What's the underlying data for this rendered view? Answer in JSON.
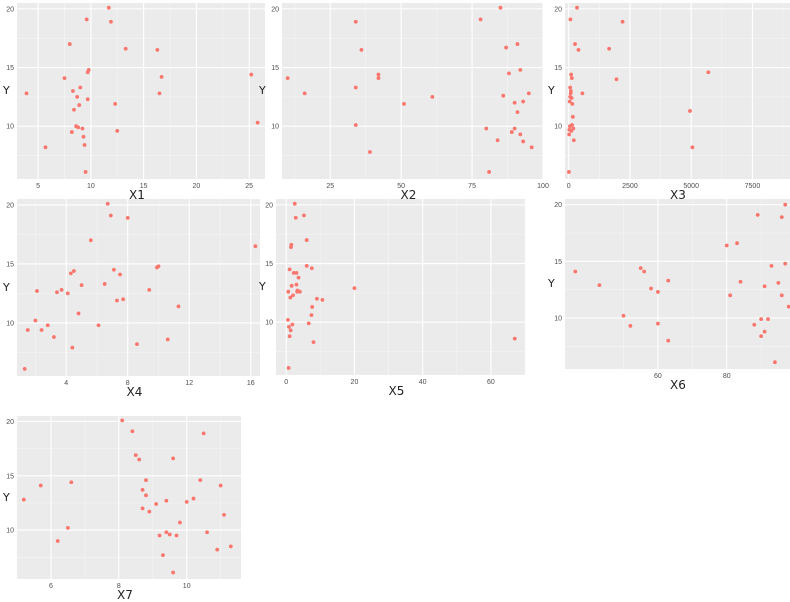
{
  "chart_data": [
    {
      "type": "scatter",
      "xlabel": "X1",
      "ylabel": "Y",
      "xlim": [
        3,
        26.5
      ],
      "ylim": [
        5.5,
        20.5
      ],
      "xticks": [
        5,
        10,
        15,
        20,
        25
      ],
      "yticks": [
        10,
        15,
        20
      ],
      "x": [
        3.9,
        5.7,
        7.5,
        8.0,
        8.2,
        8.3,
        8.4,
        8.6,
        8.7,
        8.8,
        8.9,
        9.0,
        9.2,
        9.3,
        9.4,
        9.5,
        9.6,
        9.7,
        9.7,
        9.8,
        11.7,
        11.9,
        12.3,
        12.5,
        13.3,
        16.3,
        16.5,
        16.7,
        25.2,
        25.8
      ],
      "y": [
        12.8,
        8.2,
        14.1,
        17.0,
        9.5,
        13.0,
        11.4,
        10.0,
        12.5,
        9.9,
        11.8,
        13.3,
        9.8,
        9.1,
        8.4,
        6.1,
        19.1,
        12.3,
        14.6,
        14.8,
        20.1,
        18.9,
        11.9,
        9.6,
        16.6,
        16.5,
        12.8,
        14.2,
        14.4,
        10.3
      ]
    },
    {
      "type": "scatter",
      "xlabel": "X2",
      "ylabel": "Y",
      "xlim": [
        8,
        100
      ],
      "ylim": [
        5.5,
        20.5
      ],
      "xticks": [
        25,
        50,
        75,
        100
      ],
      "yticks": [
        10,
        15,
        20
      ],
      "x": [
        10,
        16,
        34,
        34,
        34,
        36,
        39,
        42,
        42,
        51,
        61,
        78,
        80,
        81,
        84,
        85,
        86,
        87,
        88,
        89,
        90,
        90,
        91,
        91,
        92,
        92,
        93,
        93,
        95,
        96
      ],
      "y": [
        14.1,
        12.8,
        18.9,
        13.3,
        10.1,
        16.5,
        7.8,
        14.1,
        14.4,
        11.9,
        12.5,
        19.1,
        9.8,
        6.1,
        8.8,
        20.1,
        12.6,
        16.7,
        14.5,
        9.5,
        9.8,
        12.0,
        11.2,
        17.0,
        9.3,
        14.8,
        12.1,
        8.7,
        12.8,
        8.2
      ]
    },
    {
      "type": "scatter",
      "xlabel": "X3",
      "ylabel": "Y",
      "xlim": [
        -150,
        9400
      ],
      "ylim": [
        5.5,
        20.5
      ],
      "xticks": [
        0,
        2500,
        5000,
        7500
      ],
      "yticks": [
        10,
        15,
        20
      ],
      "x": [
        10,
        20,
        30,
        40,
        50,
        60,
        70,
        80,
        90,
        100,
        110,
        120,
        130,
        140,
        150,
        170,
        190,
        210,
        260,
        340,
        400,
        560,
        1650,
        1950,
        2200,
        4950,
        5050,
        5700,
        9150,
        60
      ],
      "y": [
        6.1,
        9.3,
        9.7,
        12.1,
        10.0,
        13.3,
        19.1,
        12.8,
        13.0,
        14.4,
        9.6,
        12.4,
        14.1,
        10.1,
        11.9,
        10.8,
        9.8,
        8.8,
        17.0,
        20.1,
        16.5,
        12.8,
        16.6,
        14.0,
        18.9,
        11.3,
        8.2,
        14.6,
        8.4,
        12.5
      ]
    },
    {
      "type": "scatter",
      "xlabel": "X4",
      "ylabel": "Y",
      "xlim": [
        0.8,
        16.6
      ],
      "ylim": [
        5.5,
        20.5
      ],
      "xticks": [
        4,
        8,
        12,
        16
      ],
      "yticks": [
        10,
        15,
        20
      ],
      "x": [
        1.3,
        1.5,
        2.0,
        2.1,
        2.4,
        2.8,
        3.2,
        3.4,
        3.7,
        4.1,
        4.3,
        4.4,
        4.5,
        4.8,
        5.0,
        5.6,
        6.1,
        6.5,
        6.7,
        6.9,
        7.1,
        7.3,
        7.5,
        7.7,
        8.0,
        8.6,
        9.4,
        9.9,
        10.0,
        10.6,
        11.3,
        16.3
      ],
      "y": [
        6.1,
        9.4,
        10.2,
        12.7,
        9.4,
        9.8,
        8.8,
        12.6,
        12.8,
        12.5,
        14.2,
        7.9,
        14.4,
        10.8,
        13.2,
        17.0,
        9.8,
        13.3,
        20.1,
        19.1,
        14.5,
        11.9,
        14.1,
        12.0,
        18.9,
        8.2,
        12.8,
        14.7,
        14.8,
        8.6,
        11.4,
        16.5
      ]
    },
    {
      "type": "scatter",
      "xlabel": "X5",
      "ylabel": "Y",
      "xlim": [
        -3,
        70
      ],
      "ylim": [
        5.5,
        20.5
      ],
      "xticks": [
        0,
        20,
        40,
        60
      ],
      "yticks": [
        10,
        15,
        20
      ],
      "x": [
        0.5,
        0.6,
        0.7,
        0.8,
        1.0,
        1.0,
        1.2,
        1.3,
        1.4,
        1.5,
        1.6,
        1.8,
        2.0,
        2.2,
        2.5,
        2.8,
        3.0,
        3.0,
        3.2,
        3.3,
        3.6,
        4.0,
        5.2,
        6.0,
        6.0,
        6.6,
        7.4,
        7.5,
        7.6,
        8.0,
        9.0,
        10.6,
        20.0,
        67.0
      ],
      "y": [
        10.2,
        12.6,
        6.1,
        9.6,
        8.8,
        14.5,
        12.1,
        9.3,
        16.4,
        16.6,
        13.1,
        9.8,
        12.3,
        14.2,
        20.1,
        18.9,
        13.2,
        14.2,
        12.6,
        12.7,
        13.8,
        12.6,
        19.1,
        17.0,
        14.8,
        9.9,
        10.6,
        14.6,
        11.3,
        8.3,
        12.0,
        11.9,
        12.9,
        8.6
      ]
    },
    {
      "type": "scatter",
      "xlabel": "X6",
      "ylabel": "Y",
      "xlim": [
        33,
        101
      ],
      "ylim": [
        5.5,
        20.5
      ],
      "xticks": [
        60,
        80,
        100
      ],
      "yticks": [
        10,
        15,
        20
      ],
      "x": [
        36,
        43,
        50,
        52,
        55,
        56,
        58,
        60,
        60,
        63,
        63,
        80,
        81,
        83,
        84,
        88,
        89,
        90,
        90,
        91,
        91,
        92,
        93,
        94,
        95,
        96,
        96,
        97,
        97,
        98,
        99,
        99,
        100
      ],
      "y": [
        14.1,
        12.9,
        10.2,
        9.3,
        14.4,
        14.1,
        12.6,
        9.5,
        12.3,
        13.3,
        8.0,
        16.4,
        12.0,
        16.6,
        13.2,
        9.4,
        19.1,
        9.9,
        8.4,
        8.8,
        12.8,
        9.9,
        14.6,
        6.1,
        13.1,
        18.9,
        12.0,
        14.8,
        20.0,
        11.0,
        17.0,
        10.8,
        11.6
      ]
    },
    {
      "type": "scatter",
      "xlabel": "X7",
      "ylabel": "Y",
      "xlim": [
        5.0,
        11.6
      ],
      "ylim": [
        5.5,
        20.5
      ],
      "xticks": [
        6,
        8,
        10
      ],
      "yticks": [
        10,
        15,
        20
      ],
      "x": [
        5.2,
        5.7,
        6.2,
        6.5,
        6.6,
        8.1,
        8.4,
        8.5,
        8.6,
        8.7,
        8.7,
        8.8,
        8.8,
        8.9,
        9.1,
        9.2,
        9.3,
        9.4,
        9.4,
        9.5,
        9.6,
        9.6,
        9.7,
        9.8,
        10.0,
        10.2,
        10.4,
        10.5,
        10.6,
        10.9,
        11.0,
        11.1,
        11.3
      ],
      "y": [
        12.8,
        14.1,
        9.0,
        10.2,
        14.4,
        20.1,
        19.1,
        16.9,
        16.5,
        12.0,
        13.7,
        13.2,
        14.6,
        11.7,
        12.4,
        9.5,
        7.7,
        12.7,
        9.8,
        9.6,
        16.6,
        6.1,
        9.5,
        10.7,
        12.6,
        12.9,
        14.6,
        18.9,
        9.8,
        8.2,
        14.1,
        11.4,
        8.5
      ]
    }
  ]
}
